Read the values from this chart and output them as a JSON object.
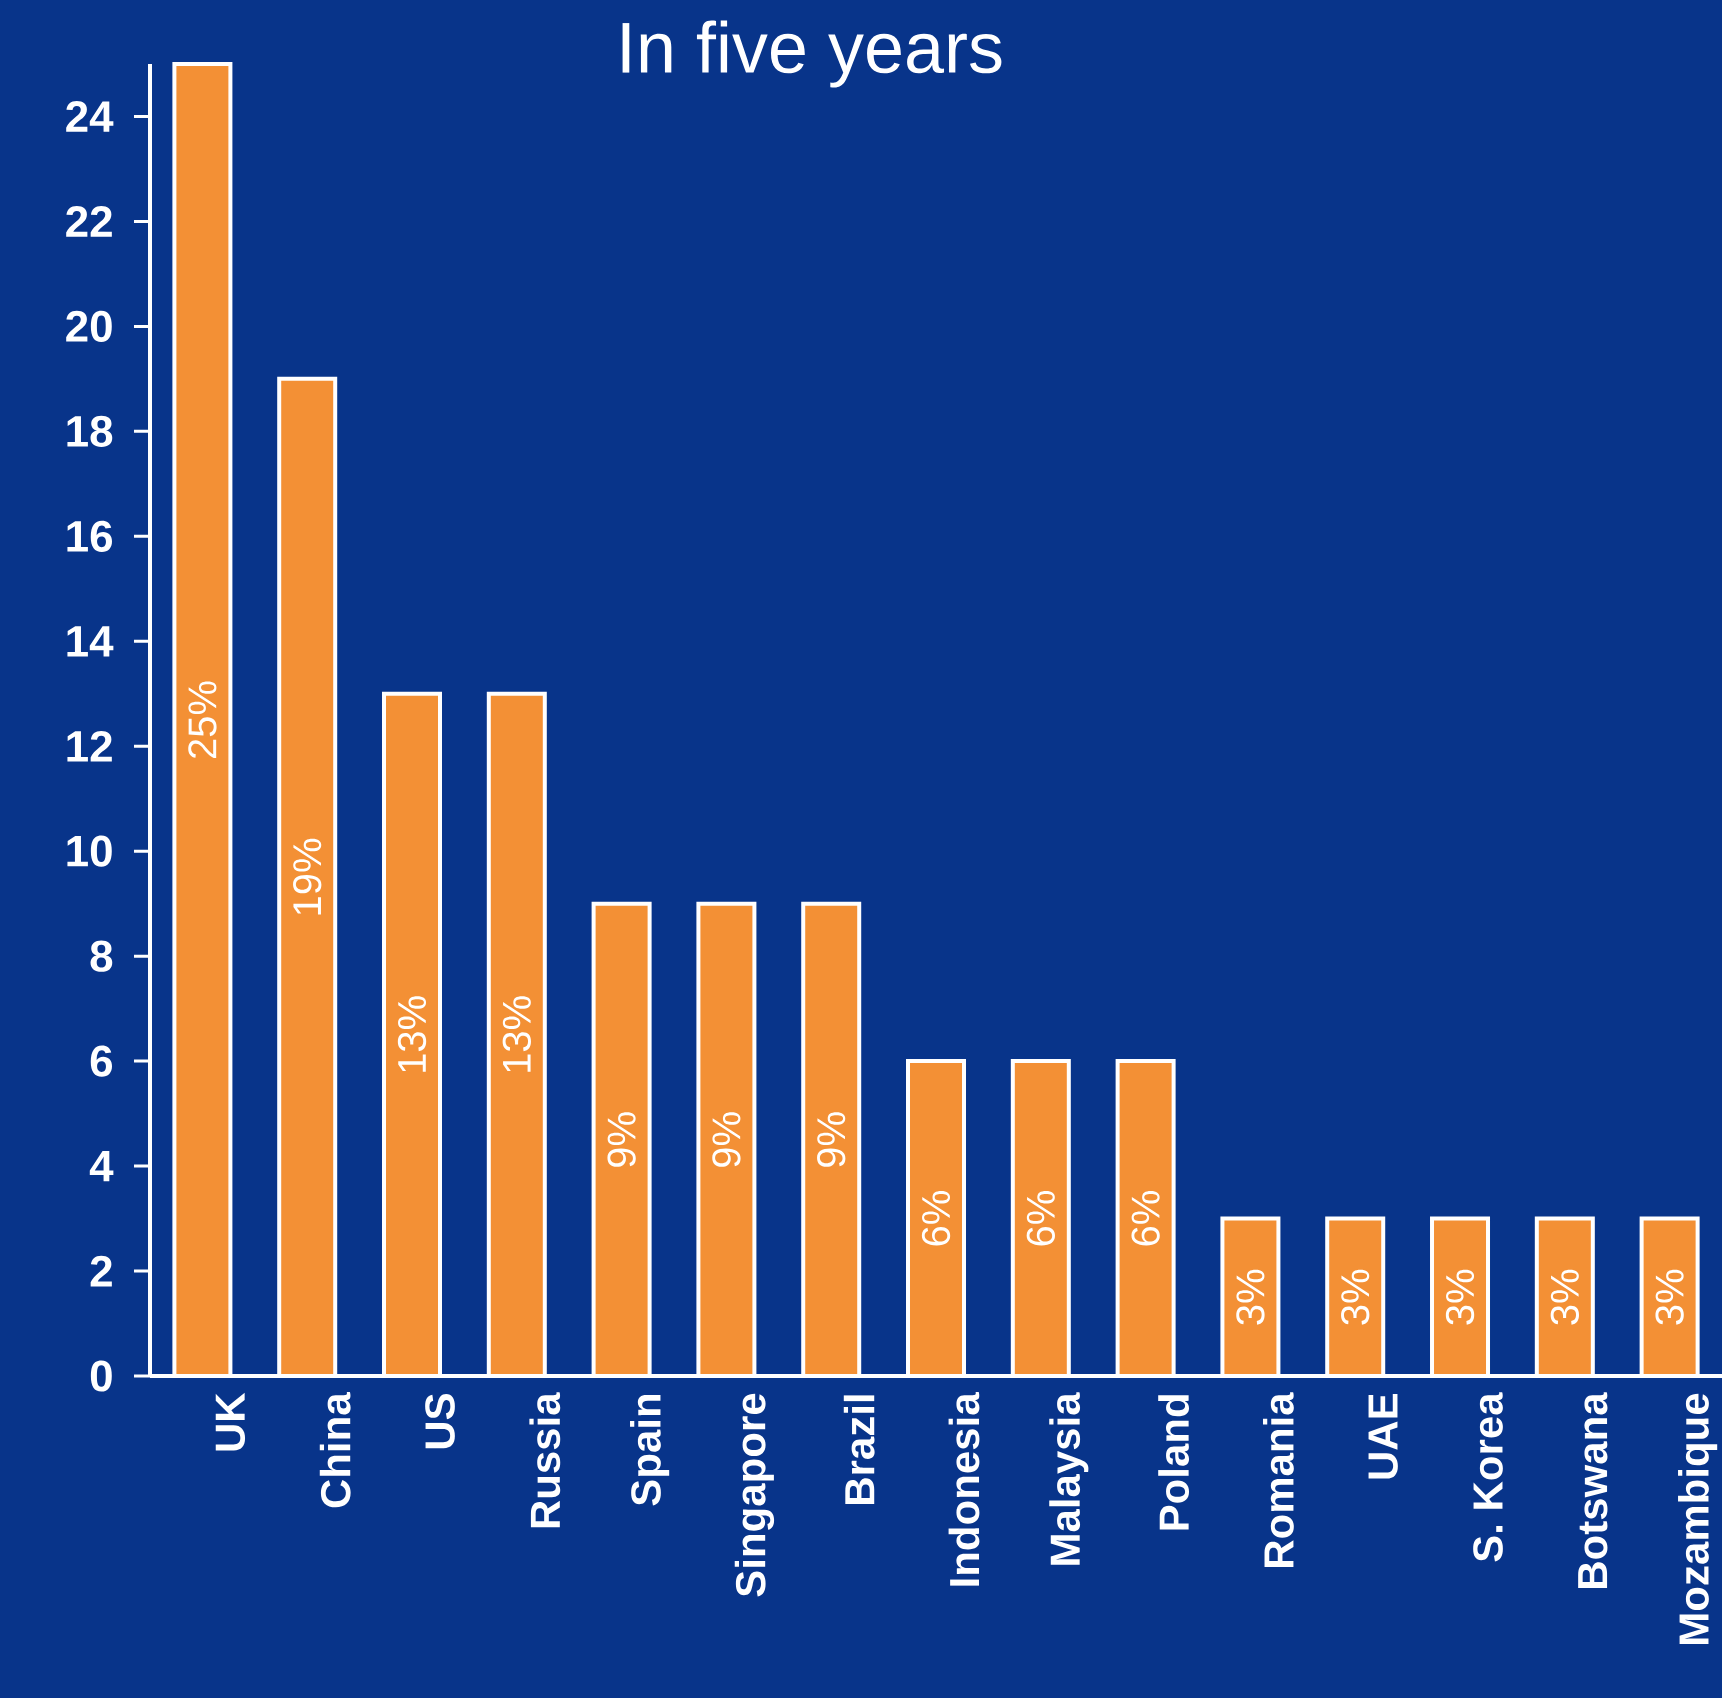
{
  "chart_data": {
    "type": "bar",
    "title": "In five years",
    "categories": [
      "UK",
      "China",
      "US",
      "Russia",
      "Spain",
      "Singapore",
      "Brazil",
      "Indonesia",
      "Malaysia",
      "Poland",
      "Romania",
      "UAE",
      "S. Korea",
      "Botswana",
      "Mozambique"
    ],
    "values": [
      25,
      19,
      13,
      13,
      9,
      9,
      9,
      6,
      6,
      6,
      3,
      3,
      3,
      3,
      3
    ],
    "value_labels": [
      "25%",
      "19%",
      "13%",
      "13%",
      "9%",
      "9%",
      "9%",
      "6%",
      "6%",
      "6%",
      "3%",
      "3%",
      "3%",
      "3%",
      "3%"
    ],
    "color": "#f39035",
    "ylim": [
      0,
      25
    ],
    "yticks": [
      0,
      2,
      4,
      6,
      8,
      10,
      12,
      14,
      16,
      18,
      20,
      22,
      24
    ]
  }
}
